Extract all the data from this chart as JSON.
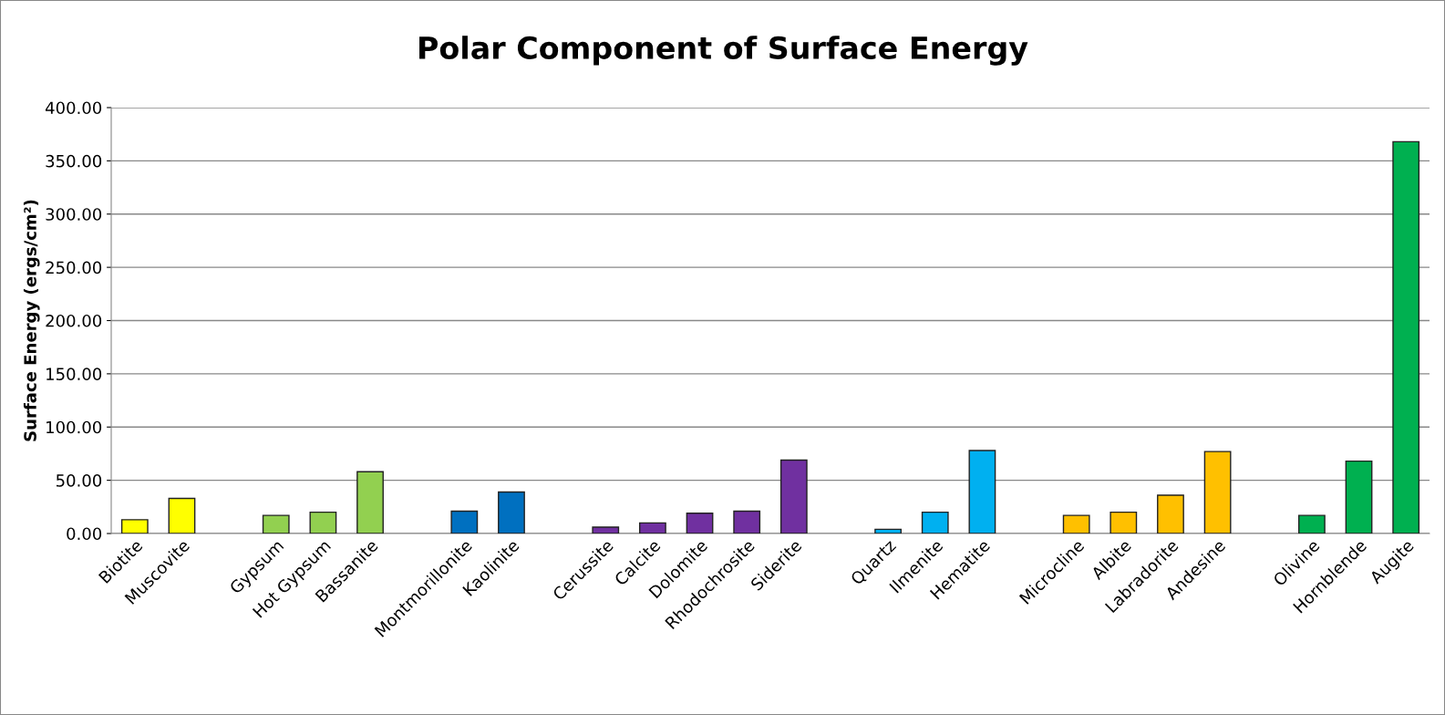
{
  "chart_data": {
    "type": "bar",
    "title": "Polar Component of Surface Energy",
    "ylabel": "Surface Energy (ergs/cm²)",
    "categories": [
      "Biotite",
      "Muscovite",
      null,
      "Gypsum",
      "Hot Gypsum",
      "Bassanite",
      null,
      "Montmorillonite",
      "Kaolinite",
      null,
      "Cerussite",
      "Calcite",
      "Dolomite",
      "Rhodochrosite",
      "Siderite",
      null,
      "Quartz",
      "Ilmenite",
      "Hematite",
      null,
      "Microcline",
      "Albite",
      "Labradorite",
      "Andesine",
      null,
      "Olivine",
      "Hornblende",
      "Augite"
    ],
    "values": [
      13,
      33,
      null,
      17,
      20,
      58,
      null,
      21,
      39,
      null,
      6,
      10,
      19,
      21,
      69,
      null,
      4,
      20,
      78,
      null,
      17,
      20,
      36,
      77,
      null,
      17,
      68,
      368
    ],
    "colors": [
      "#ffff00",
      "#ffff00",
      null,
      "#92d050",
      "#92d050",
      "#92d050",
      null,
      "#0070c0",
      "#0070c0",
      null,
      "#7030a0",
      "#7030a0",
      "#7030a0",
      "#7030a0",
      "#7030a0",
      null,
      "#00b0f0",
      "#00b0f0",
      "#00b0f0",
      null,
      "#ffc000",
      "#ffc000",
      "#ffc000",
      "#ffc000",
      null,
      "#00b050",
      "#00b050",
      "#00b050"
    ],
    "ylim": [
      0,
      400
    ],
    "yticks": [
      {
        "value": 0,
        "label": "0.00"
      },
      {
        "value": 50,
        "label": "50.00"
      },
      {
        "value": 100,
        "label": "100.00"
      },
      {
        "value": 150,
        "label": "150.00"
      },
      {
        "value": 200,
        "label": "200.00"
      },
      {
        "value": 250,
        "label": "250.00"
      },
      {
        "value": 300,
        "label": "300.00"
      },
      {
        "value": 350,
        "label": "350.00"
      },
      {
        "value": 400,
        "label": "400.00"
      }
    ],
    "grid": "y"
  }
}
